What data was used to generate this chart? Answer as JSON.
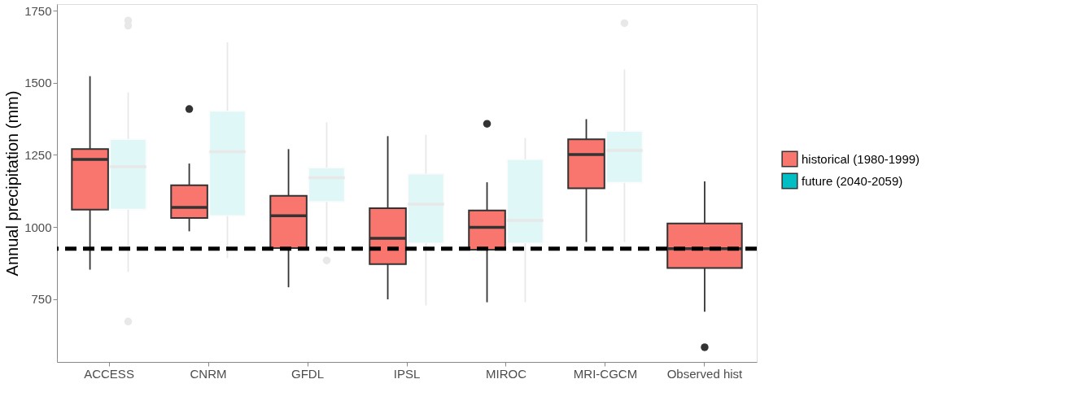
{
  "chart_data": {
    "type": "box",
    "ylabel": "Annual precipitation (mm)",
    "categories": [
      "ACCESS",
      "CNRM",
      "GFDL",
      "IPSL",
      "MIROC",
      "MRI-CGCM",
      "Observed hist"
    ],
    "series": [
      {
        "name": "historical (1980-1999)",
        "color": "#f8766d",
        "boxes": [
          {
            "low": 852,
            "q1": 1060,
            "median": 1234,
            "q3": 1270,
            "high": 1523
          },
          {
            "low": 985,
            "q1": 1031,
            "median": 1068,
            "q3": 1145,
            "high": 1220,
            "outliers": [
              1409
            ]
          },
          {
            "low": 791,
            "q1": 927,
            "median": 1039,
            "q3": 1108,
            "high": 1270
          },
          {
            "low": 749,
            "q1": 871,
            "median": 961,
            "q3": 1065,
            "high": 1315
          },
          {
            "low": 739,
            "q1": 921,
            "median": 999,
            "q3": 1057,
            "high": 1155,
            "outliers": [
              1358
            ]
          },
          {
            "low": 948,
            "q1": 1134,
            "median": 1251,
            "q3": 1304,
            "high": 1374
          },
          {
            "low": 706,
            "q1": 858,
            "median": 925,
            "q3": 1012,
            "high": 1158,
            "outliers": [
              583
            ]
          }
        ]
      },
      {
        "name": "future (2040-2059)",
        "color": "#00bfc4",
        "boxes": [
          {
            "low": 844,
            "q1": 1060,
            "median": 1209,
            "q3": 1305,
            "high": 1467,
            "outliers": [
              1716,
              1698,
              672
            ]
          },
          {
            "low": 892,
            "q1": 1038,
            "median": 1261,
            "q3": 1403,
            "high": 1640
          },
          {
            "low": 911,
            "q1": 1087,
            "median": 1171,
            "q3": 1206,
            "high": 1363,
            "outliers": [
              884
            ]
          },
          {
            "low": 728,
            "q1": 943,
            "median": 1079,
            "q3": 1185,
            "high": 1320
          },
          {
            "low": 739,
            "q1": 943,
            "median": 1023,
            "q3": 1235,
            "high": 1309
          },
          {
            "low": 948,
            "q1": 1153,
            "median": 1265,
            "q3": 1333,
            "high": 1546,
            "outliers": [
              1707
            ]
          },
          null
        ]
      }
    ],
    "ylim": [
      532,
      1773
    ],
    "yticks": [
      750,
      1000,
      1250,
      1500,
      1750
    ],
    "ref_lines": [
      {
        "axis": "y",
        "value": 925,
        "color": "#000000",
        "line_style": "dashed"
      }
    ],
    "legend": "right",
    "grid": false
  }
}
